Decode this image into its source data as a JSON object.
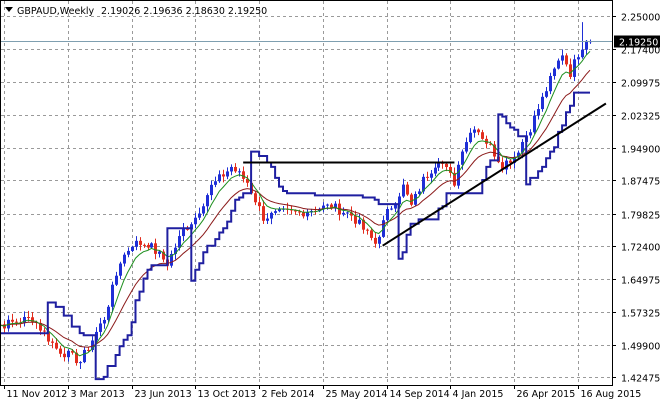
{
  "header": {
    "symbol_text": "GBPAUD,Weekly",
    "ohlc_text": "2.19026 2.19636 2.18630 2.19250"
  },
  "current_price_label": "2.19250",
  "colors": {
    "background": "#ffffff",
    "grid": "#9a9a9a",
    "up_candle": "#1f2fd6",
    "down_candle": "#e22d1e",
    "ma_fast": "#1e8f1e",
    "ma_slow": "#8b1a1a",
    "trailing_stop": "#1f1fa0",
    "price_line": "#7f9fb0",
    "trendline": "#000000",
    "label_bg": "#000000"
  },
  "chart_data": {
    "type": "candlestick",
    "title": "GBPAUD,Weekly",
    "ohlc_readout": [
      2.19026,
      2.19636,
      2.1863,
      2.1925
    ],
    "y_ticks": [
      "2.25000",
      "2.17400",
      "2.09975",
      "2.02325",
      "1.94900",
      "1.87475",
      "1.79825",
      "1.72400",
      "1.64975",
      "1.57325",
      "1.49900",
      "1.42475"
    ],
    "y_tick_values": [
      2.25,
      2.174,
      2.09975,
      2.02325,
      1.949,
      1.87475,
      1.79825,
      1.724,
      1.64975,
      1.57325,
      1.499,
      1.42475
    ],
    "ylim": [
      1.42475,
      2.25
    ],
    "x_ticks": [
      "11 Nov 2012",
      "3 Mar 2013",
      "23 Jun 2013",
      "13 Oct 2013",
      "2 Feb 2014",
      "25 May 2014",
      "14 Sep 2014",
      "4 Jan 2015",
      "26 Apr 2015",
      "16 Aug 2015"
    ],
    "x_tick_dates": [
      "2012-11-11",
      "2013-03-03",
      "2013-06-23",
      "2013-10-13",
      "2014-02-02",
      "2014-05-25",
      "2014-09-14",
      "2015-01-04",
      "2015-04-26",
      "2015-08-16"
    ],
    "current_price": 2.1925,
    "grid": true,
    "indicators": [
      "fast moving average",
      "slow moving average",
      "trailing stop"
    ],
    "trendlines": [
      {
        "start": [
          "2014-01-05",
          1.915
        ],
        "end": [
          "2015-01-11",
          1.915
        ]
      },
      {
        "start": [
          "2014-09-07",
          1.725
        ],
        "end": [
          "2015-10-04",
          2.05
        ]
      }
    ],
    "anchors": [
      [
        "2012-09-30",
        1.545
      ],
      [
        "2012-11-11",
        1.545
      ],
      [
        "2012-12-30",
        1.56
      ],
      [
        "2013-02-10",
        1.49
      ],
      [
        "2013-03-24",
        1.46
      ],
      [
        "2013-05-05",
        1.56
      ],
      [
        "2013-06-02",
        1.69
      ],
      [
        "2013-06-23",
        1.73
      ],
      [
        "2013-07-21",
        1.73
      ],
      [
        "2013-08-25",
        1.685
      ],
      [
        "2013-09-22",
        1.76
      ],
      [
        "2013-10-13",
        1.79
      ],
      [
        "2013-11-10",
        1.86
      ],
      [
        "2013-12-15",
        1.905
      ],
      [
        "2014-01-12",
        1.87
      ],
      [
        "2014-02-09",
        1.79
      ],
      [
        "2014-03-16",
        1.8
      ],
      [
        "2014-04-13",
        1.8
      ],
      [
        "2014-05-11",
        1.81
      ],
      [
        "2014-06-08",
        1.815
      ],
      [
        "2014-07-13",
        1.795
      ],
      [
        "2014-08-24",
        1.73
      ],
      [
        "2014-09-14",
        1.8
      ],
      [
        "2014-10-12",
        1.86
      ],
      [
        "2014-10-26",
        1.815
      ],
      [
        "2014-11-16",
        1.875
      ],
      [
        "2014-12-14",
        1.925
      ],
      [
        "2015-01-11",
        1.87
      ],
      [
        "2015-01-25",
        1.95
      ],
      [
        "2015-02-15",
        2.0
      ],
      [
        "2015-03-15",
        1.95
      ],
      [
        "2015-04-05",
        1.91
      ],
      [
        "2015-04-26",
        1.93
      ],
      [
        "2015-05-24",
        1.995
      ],
      [
        "2015-06-14",
        2.06
      ],
      [
        "2015-07-05",
        2.125
      ],
      [
        "2015-07-19",
        2.165
      ],
      [
        "2015-08-02",
        2.12
      ],
      [
        "2015-08-16",
        2.165
      ],
      [
        "2015-08-30",
        2.2
      ],
      [
        "2015-09-06",
        2.1925
      ]
    ]
  }
}
